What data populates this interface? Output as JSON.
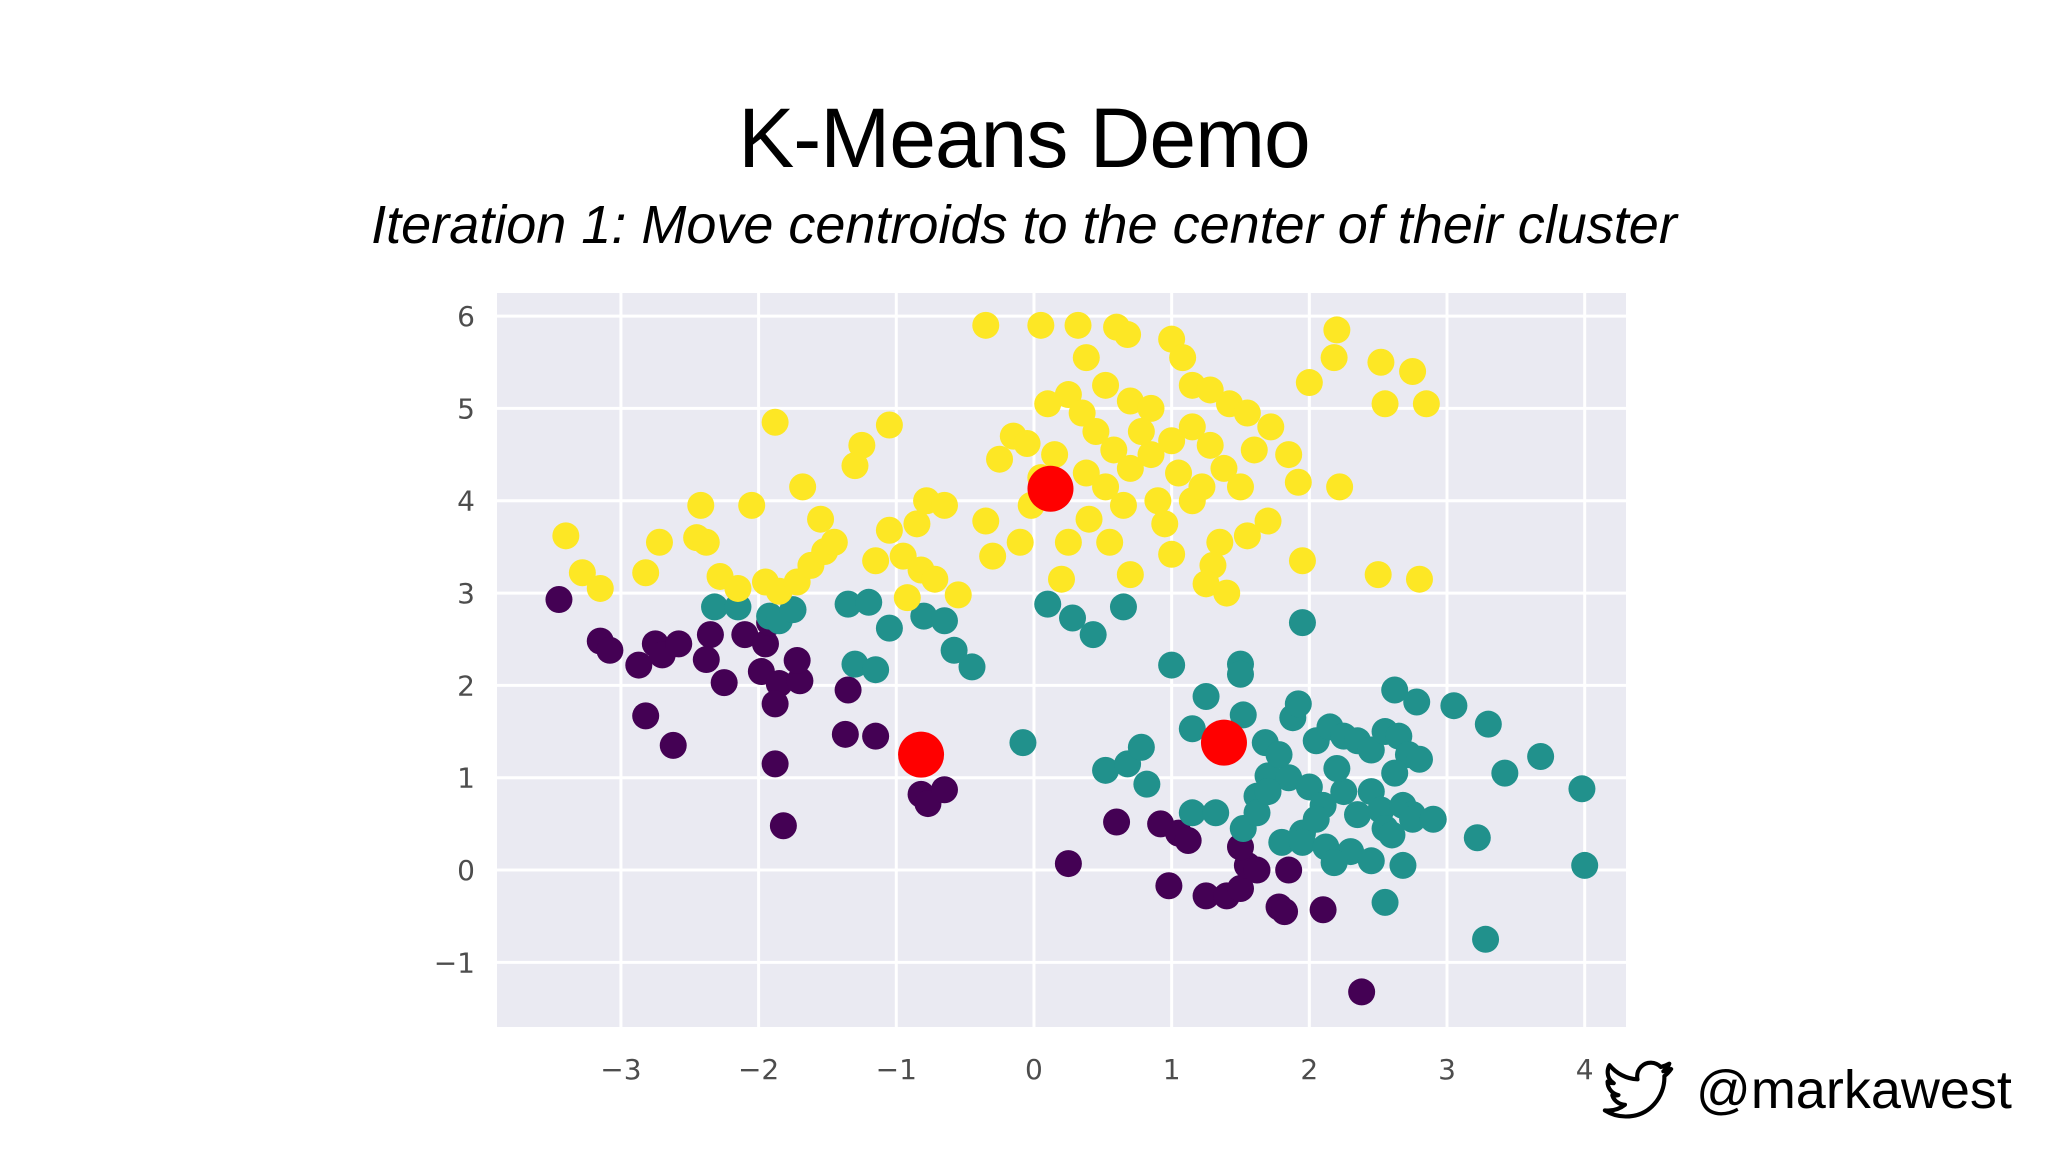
{
  "slide": {
    "title": "K-Means Demo",
    "subtitle": "Iteration 1: Move centroids to the center of their cluster",
    "handle": "@markawest",
    "icon": "twitter-bird-icon"
  },
  "colors": {
    "plot_background": "#eaeaf2",
    "grid": "#ffffff",
    "cluster_purple": "#440154",
    "cluster_teal": "#21918c",
    "cluster_yellow": "#fde725",
    "centroid": "#ff0000"
  },
  "chart_data": {
    "type": "scatter",
    "title": "",
    "xlabel": "",
    "ylabel": "",
    "xlim": [
      -3.9,
      4.3
    ],
    "ylim": [
      -1.7,
      6.25
    ],
    "xticks": [
      -3,
      -2,
      -1,
      0,
      1,
      2,
      3,
      4
    ],
    "yticks": [
      -1,
      0,
      1,
      2,
      3,
      4,
      5,
      6
    ],
    "grid": true,
    "legend": "none",
    "series": [
      {
        "color": "#440154",
        "points": [
          [
            -3.45,
            2.93
          ],
          [
            -3.15,
            2.48
          ],
          [
            -3.08,
            2.38
          ],
          [
            -2.87,
            2.22
          ],
          [
            -2.82,
            1.67
          ],
          [
            -2.62,
            1.35
          ],
          [
            -2.75,
            2.45
          ],
          [
            -2.7,
            2.33
          ],
          [
            -2.58,
            2.45
          ],
          [
            -2.35,
            2.55
          ],
          [
            -2.38,
            2.28
          ],
          [
            -2.25,
            2.03
          ],
          [
            -2.1,
            2.55
          ],
          [
            -1.98,
            2.15
          ],
          [
            -1.95,
            2.45
          ],
          [
            -1.85,
            2.02
          ],
          [
            -1.88,
            1.8
          ],
          [
            -1.7,
            2.05
          ],
          [
            -1.72,
            2.27
          ],
          [
            -1.92,
            2.68
          ],
          [
            -1.88,
            1.15
          ],
          [
            -1.82,
            0.48
          ],
          [
            -1.35,
            1.95
          ],
          [
            -1.37,
            1.47
          ],
          [
            -1.15,
            1.45
          ],
          [
            -0.82,
            0.82
          ],
          [
            -0.77,
            0.72
          ],
          [
            -0.65,
            0.87
          ],
          [
            0.25,
            0.07
          ],
          [
            0.6,
            0.52
          ],
          [
            0.92,
            0.5
          ],
          [
            1.05,
            0.4
          ],
          [
            1.12,
            0.32
          ],
          [
            0.98,
            -0.17
          ],
          [
            1.25,
            -0.28
          ],
          [
            1.4,
            -0.28
          ],
          [
            1.5,
            -0.2
          ],
          [
            1.55,
            0.05
          ],
          [
            1.5,
            0.25
          ],
          [
            1.62,
            0.0
          ],
          [
            1.85,
            0.0
          ],
          [
            1.78,
            -0.4
          ],
          [
            1.82,
            -0.45
          ],
          [
            2.1,
            -0.43
          ],
          [
            2.38,
            -1.32
          ]
        ]
      },
      {
        "color": "#21918c",
        "points": [
          [
            -2.32,
            2.85
          ],
          [
            -2.15,
            2.85
          ],
          [
            -1.92,
            2.75
          ],
          [
            -1.85,
            2.7
          ],
          [
            -1.75,
            2.82
          ],
          [
            -1.35,
            2.88
          ],
          [
            -1.2,
            2.9
          ],
          [
            -1.05,
            2.62
          ],
          [
            -0.8,
            2.75
          ],
          [
            -0.65,
            2.7
          ],
          [
            -0.58,
            2.38
          ],
          [
            -0.45,
            2.2
          ],
          [
            -1.3,
            2.23
          ],
          [
            -1.15,
            2.17
          ],
          [
            0.1,
            2.88
          ],
          [
            0.28,
            2.73
          ],
          [
            0.43,
            2.55
          ],
          [
            0.65,
            2.85
          ],
          [
            1.0,
            2.22
          ],
          [
            1.25,
            1.88
          ],
          [
            1.5,
            2.23
          ],
          [
            1.5,
            2.12
          ],
          [
            1.52,
            1.68
          ],
          [
            1.95,
            2.68
          ],
          [
            1.88,
            1.65
          ],
          [
            1.92,
            1.8
          ],
          [
            1.15,
            1.53
          ],
          [
            -0.08,
            1.38
          ],
          [
            0.52,
            1.08
          ],
          [
            0.68,
            1.15
          ],
          [
            0.78,
            1.33
          ],
          [
            0.82,
            0.93
          ],
          [
            1.15,
            0.62
          ],
          [
            1.32,
            0.62
          ],
          [
            1.52,
            0.45
          ],
          [
            1.62,
            0.8
          ],
          [
            1.7,
            1.02
          ],
          [
            1.85,
            1.0
          ],
          [
            1.68,
            1.38
          ],
          [
            1.78,
            1.25
          ],
          [
            1.8,
            0.3
          ],
          [
            1.95,
            0.4
          ],
          [
            2.05,
            1.4
          ],
          [
            2.15,
            1.55
          ],
          [
            2.25,
            1.45
          ],
          [
            2.35,
            1.4
          ],
          [
            2.45,
            1.3
          ],
          [
            2.55,
            1.5
          ],
          [
            2.65,
            1.45
          ],
          [
            2.72,
            1.25
          ],
          [
            2.62,
            1.05
          ],
          [
            2.8,
            1.2
          ],
          [
            2.45,
            0.85
          ],
          [
            2.52,
            0.65
          ],
          [
            2.68,
            0.7
          ],
          [
            2.75,
            0.6
          ],
          [
            2.55,
            0.45
          ],
          [
            2.6,
            0.38
          ],
          [
            2.35,
            0.6
          ],
          [
            2.25,
            0.85
          ],
          [
            2.2,
            1.1
          ],
          [
            2.0,
            0.9
          ],
          [
            2.1,
            0.7
          ],
          [
            2.05,
            0.55
          ],
          [
            1.95,
            0.3
          ],
          [
            2.12,
            0.25
          ],
          [
            2.3,
            0.2
          ],
          [
            2.45,
            0.1
          ],
          [
            2.68,
            0.05
          ],
          [
            2.75,
            0.55
          ],
          [
            2.62,
            1.95
          ],
          [
            2.78,
            1.82
          ],
          [
            3.05,
            1.78
          ],
          [
            3.3,
            1.58
          ],
          [
            3.42,
            1.05
          ],
          [
            3.68,
            1.23
          ],
          [
            3.22,
            0.35
          ],
          [
            3.98,
            0.88
          ],
          [
            4.0,
            0.05
          ],
          [
            2.9,
            0.55
          ],
          [
            2.55,
            -0.35
          ],
          [
            3.28,
            -0.75
          ],
          [
            2.18,
            0.08
          ],
          [
            1.62,
            0.62
          ],
          [
            1.7,
            0.85
          ]
        ]
      },
      {
        "color": "#fde725",
        "points": [
          [
            -3.4,
            3.62
          ],
          [
            -3.28,
            3.22
          ],
          [
            -3.15,
            3.05
          ],
          [
            -2.82,
            3.22
          ],
          [
            -2.72,
            3.55
          ],
          [
            -2.45,
            3.6
          ],
          [
            -2.38,
            3.55
          ],
          [
            -2.42,
            3.95
          ],
          [
            -2.05,
            3.95
          ],
          [
            -2.28,
            3.18
          ],
          [
            -2.15,
            3.05
          ],
          [
            -1.95,
            3.12
          ],
          [
            -1.85,
            3.02
          ],
          [
            -1.72,
            3.12
          ],
          [
            -1.62,
            3.3
          ],
          [
            -1.52,
            3.45
          ],
          [
            -1.45,
            3.55
          ],
          [
            -1.55,
            3.8
          ],
          [
            -1.68,
            4.15
          ],
          [
            -1.88,
            4.85
          ],
          [
            -1.25,
            4.6
          ],
          [
            -1.3,
            4.38
          ],
          [
            -1.05,
            4.82
          ],
          [
            -1.05,
            3.68
          ],
          [
            -0.95,
            3.4
          ],
          [
            -0.85,
            3.75
          ],
          [
            -0.78,
            4.0
          ],
          [
            -0.65,
            3.95
          ],
          [
            -0.82,
            3.25
          ],
          [
            -0.72,
            3.15
          ],
          [
            -0.55,
            2.98
          ],
          [
            -0.92,
            2.95
          ],
          [
            -1.15,
            3.35
          ],
          [
            -0.35,
            3.78
          ],
          [
            -0.3,
            3.4
          ],
          [
            -0.1,
            3.55
          ],
          [
            -0.02,
            3.95
          ],
          [
            0.05,
            4.25
          ],
          [
            -0.15,
            4.7
          ],
          [
            -0.25,
            4.45
          ],
          [
            -0.35,
            5.9
          ],
          [
            0.05,
            5.9
          ],
          [
            0.32,
            5.9
          ],
          [
            0.6,
            5.88
          ],
          [
            0.68,
            5.8
          ],
          [
            0.38,
            5.55
          ],
          [
            0.52,
            5.25
          ],
          [
            0.7,
            5.08
          ],
          [
            0.85,
            5.0
          ],
          [
            1.0,
            5.75
          ],
          [
            1.08,
            5.55
          ],
          [
            1.15,
            5.25
          ],
          [
            1.28,
            5.2
          ],
          [
            1.42,
            5.05
          ],
          [
            1.55,
            4.95
          ],
          [
            0.1,
            5.05
          ],
          [
            0.25,
            5.15
          ],
          [
            0.35,
            4.95
          ],
          [
            0.45,
            4.75
          ],
          [
            0.58,
            4.55
          ],
          [
            0.7,
            4.35
          ],
          [
            0.85,
            4.5
          ],
          [
            1.0,
            4.65
          ],
          [
            1.15,
            4.8
          ],
          [
            1.28,
            4.6
          ],
          [
            1.38,
            4.35
          ],
          [
            1.5,
            4.15
          ],
          [
            1.6,
            4.55
          ],
          [
            1.72,
            4.8
          ],
          [
            1.85,
            4.5
          ],
          [
            1.92,
            4.2
          ],
          [
            2.0,
            5.28
          ],
          [
            2.2,
            5.85
          ],
          [
            2.18,
            5.55
          ],
          [
            2.52,
            5.5
          ],
          [
            2.75,
            5.4
          ],
          [
            2.85,
            5.05
          ],
          [
            2.55,
            5.05
          ],
          [
            2.22,
            4.15
          ],
          [
            2.5,
            3.2
          ],
          [
            2.8,
            3.15
          ],
          [
            1.95,
            3.35
          ],
          [
            1.7,
            3.78
          ],
          [
            1.35,
            3.55
          ],
          [
            1.3,
            3.3
          ],
          [
            1.25,
            3.1
          ],
          [
            1.4,
            3.0
          ],
          [
            1.0,
            3.42
          ],
          [
            0.95,
            3.75
          ],
          [
            0.7,
            3.2
          ],
          [
            0.55,
            3.55
          ],
          [
            0.4,
            3.8
          ],
          [
            0.25,
            3.55
          ],
          [
            0.2,
            3.15
          ],
          [
            0.65,
            3.95
          ],
          [
            0.52,
            4.15
          ],
          [
            0.38,
            4.3
          ],
          [
            0.9,
            4.0
          ],
          [
            1.15,
            4.0
          ],
          [
            1.55,
            3.62
          ],
          [
            0.15,
            4.5
          ],
          [
            -0.05,
            4.62
          ],
          [
            0.78,
            4.75
          ],
          [
            1.05,
            4.3
          ],
          [
            1.22,
            4.15
          ]
        ]
      }
    ],
    "centroids": [
      [
        0.12,
        4.13
      ],
      [
        -0.82,
        1.25
      ],
      [
        1.38,
        1.38
      ]
    ]
  }
}
